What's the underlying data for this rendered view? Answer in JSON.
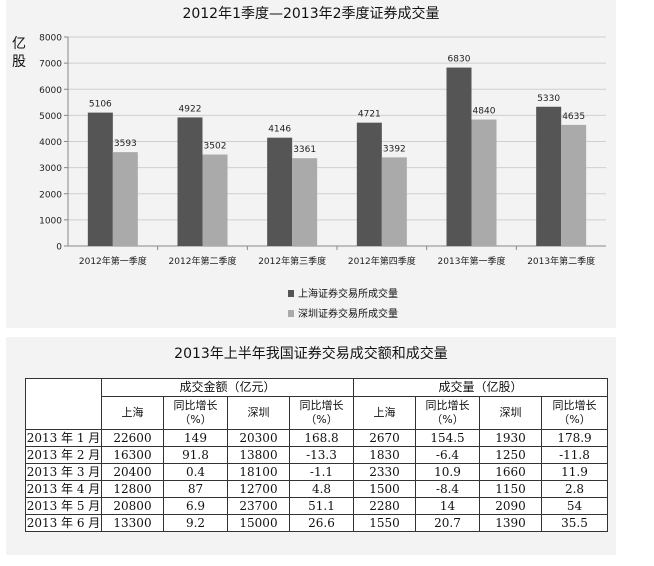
{
  "chart_data": {
    "type": "bar",
    "title": "2012年1季度—2013年2季度证券成交量",
    "ylabel": "亿股",
    "ylim": [
      0,
      8000
    ],
    "yticks": [
      0,
      1000,
      2000,
      3000,
      4000,
      5000,
      6000,
      7000,
      8000
    ],
    "categories": [
      "2012年第一季度",
      "2012年第二季度",
      "2012年第三季度",
      "2012年第四季度",
      "2013年第一季度",
      "2013年第二季度"
    ],
    "series": [
      {
        "name": "上海证券交易所成交量",
        "color": "#555555",
        "values": [
          5106,
          4922,
          4146,
          4721,
          6830,
          5330
        ]
      },
      {
        "name": "深圳证券交易所成交量",
        "color": "#aaaaaa",
        "values": [
          3593,
          3502,
          3361,
          3392,
          4840,
          4635
        ]
      }
    ],
    "grid": true,
    "legend_position": "bottom-right"
  },
  "table": {
    "title": "2013年上半年我国证券交易成交额和成交量",
    "group_amount": "成交金额（亿元）",
    "group_volume": "成交量（亿股）",
    "subheaders": {
      "sh": "上海",
      "growth_1": "同比增长",
      "growth_2": "（%）",
      "sz": "深圳"
    },
    "rows": [
      {
        "month": "2013 年 1 月",
        "amt_sh": "22600",
        "amt_sh_g": "149",
        "amt_sz": "20300",
        "amt_sz_g": "168.8",
        "vol_sh": "2670",
        "vol_sh_g": "154.5",
        "vol_sz": "1930",
        "vol_sz_g": "178.9"
      },
      {
        "month": "2013 年 2 月",
        "amt_sh": "16300",
        "amt_sh_g": "91.8",
        "amt_sz": "13800",
        "amt_sz_g": "-13.3",
        "vol_sh": "1830",
        "vol_sh_g": "-6.4",
        "vol_sz": "1250",
        "vol_sz_g": "-11.8"
      },
      {
        "month": "2013 年 3 月",
        "amt_sh": "20400",
        "amt_sh_g": "0.4",
        "amt_sz": "18100",
        "amt_sz_g": "-1.1",
        "vol_sh": "2330",
        "vol_sh_g": "10.9",
        "vol_sz": "1660",
        "vol_sz_g": "11.9"
      },
      {
        "month": "2013 年 4 月",
        "amt_sh": "12800",
        "amt_sh_g": "87",
        "amt_sz": "12700",
        "amt_sz_g": "4.8",
        "vol_sh": "1500",
        "vol_sh_g": "-8.4",
        "vol_sz": "1150",
        "vol_sz_g": "2.8"
      },
      {
        "month": "2013 年 5 月",
        "amt_sh": "20800",
        "amt_sh_g": "6.9",
        "amt_sz": "23700",
        "amt_sz_g": "51.1",
        "vol_sh": "2280",
        "vol_sh_g": "14",
        "vol_sz": "2090",
        "vol_sz_g": "54"
      },
      {
        "month": "2013 年 6 月",
        "amt_sh": "13300",
        "amt_sh_g": "9.2",
        "amt_sz": "15000",
        "amt_sz_g": "26.6",
        "vol_sh": "1550",
        "vol_sh_g": "20.7",
        "vol_sz": "1390",
        "vol_sz_g": "35.5"
      }
    ]
  }
}
